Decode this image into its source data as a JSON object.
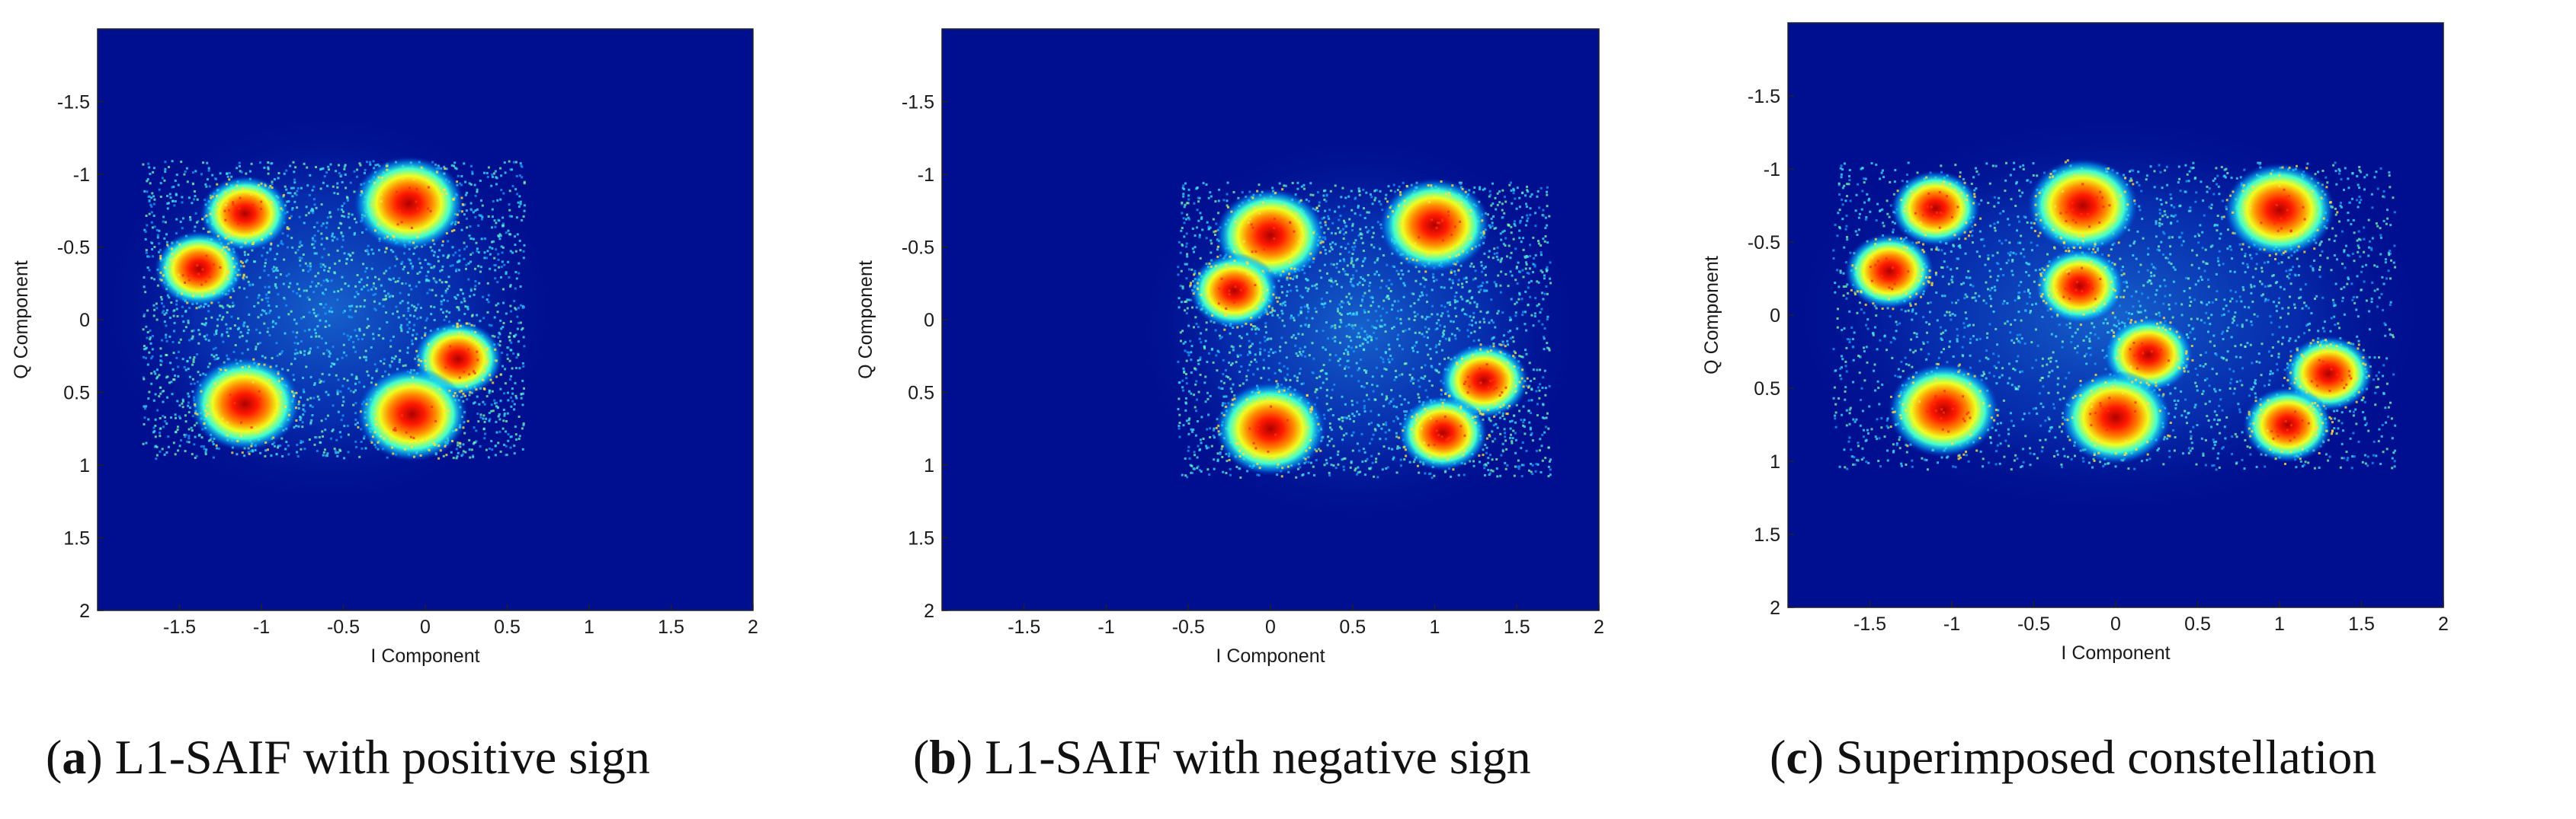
{
  "chart_data": [
    {
      "type": "scatter",
      "title": "",
      "xlabel": "I Component",
      "ylabel": "Q Component",
      "xlim": [
        -2,
        2
      ],
      "ylim": [
        -2,
        2
      ],
      "y_axis_inverted": true,
      "x_ticks": [
        "-1.5",
        "-1",
        "-0.5",
        "0",
        "0.5",
        "1",
        "1.5",
        "2"
      ],
      "y_ticks": [
        "-1.5",
        "-1",
        "-0.5",
        "0",
        "0.5",
        "1",
        "1.5",
        "2"
      ],
      "background_color": "#000f8f",
      "colormap": "jet",
      "grid": false,
      "series": [
        {
          "clusters": [
            {
              "x": -1.1,
              "y": -0.73
            },
            {
              "x": -1.38,
              "y": -0.35
            },
            {
              "x": -0.1,
              "y": -0.8
            },
            {
              "x": 0.2,
              "y": 0.27
            },
            {
              "x": -1.1,
              "y": 0.58
            },
            {
              "x": -0.08,
              "y": 0.65
            }
          ]
        }
      ]
    },
    {
      "type": "scatter",
      "title": "",
      "xlabel": "I Component",
      "ylabel": "Q Component",
      "xlim": [
        -2,
        2
      ],
      "ylim": [
        -2,
        2
      ],
      "y_axis_inverted": true,
      "x_ticks": [
        "-1.5",
        "-1",
        "-0.5",
        "0",
        "0.5",
        "1",
        "1.5",
        "2"
      ],
      "y_ticks": [
        "-1.5",
        "-1",
        "-0.5",
        "0",
        "0.5",
        "1",
        "1.5",
        "2"
      ],
      "background_color": "#000f8f",
      "colormap": "jet",
      "grid": false,
      "series": [
        {
          "clusters": [
            {
              "x": 0.0,
              "y": -0.58
            },
            {
              "x": -0.22,
              "y": -0.2
            },
            {
              "x": 1.0,
              "y": -0.65
            },
            {
              "x": 1.3,
              "y": 0.42
            },
            {
              "x": 0.0,
              "y": 0.75
            },
            {
              "x": 1.05,
              "y": 0.78
            }
          ]
        }
      ]
    },
    {
      "type": "scatter",
      "title": "",
      "xlabel": "I Component",
      "ylabel": "Q Component",
      "xlim": [
        -2,
        2
      ],
      "ylim": [
        -2,
        2
      ],
      "y_axis_inverted": true,
      "x_ticks": [
        "-1.5",
        "-1",
        "-0.5",
        "0",
        "0.5",
        "1",
        "1.5",
        "2"
      ],
      "y_ticks": [
        "-1.5",
        "-1",
        "-0.5",
        "0",
        "0.5",
        "1",
        "1.5",
        "2"
      ],
      "background_color": "#000f8f",
      "colormap": "jet",
      "grid": false,
      "series": [
        {
          "clusters": [
            {
              "x": -1.1,
              "y": -0.73
            },
            {
              "x": -1.38,
              "y": -0.3
            },
            {
              "x": -0.2,
              "y": -0.75
            },
            {
              "x": -0.22,
              "y": -0.2
            },
            {
              "x": 1.0,
              "y": -0.72
            },
            {
              "x": 0.2,
              "y": 0.27
            },
            {
              "x": 1.3,
              "y": 0.4
            },
            {
              "x": -1.05,
              "y": 0.65
            },
            {
              "x": 0.0,
              "y": 0.7
            },
            {
              "x": 1.05,
              "y": 0.75
            }
          ]
        }
      ]
    }
  ],
  "captions": [
    {
      "letter": "a",
      "text": ") L1-SAIF with positive sign"
    },
    {
      "letter": "b",
      "text": ") L1-SAIF with negative sign"
    },
    {
      "letter": "c",
      "text": ") Superimposed constellation"
    }
  ]
}
